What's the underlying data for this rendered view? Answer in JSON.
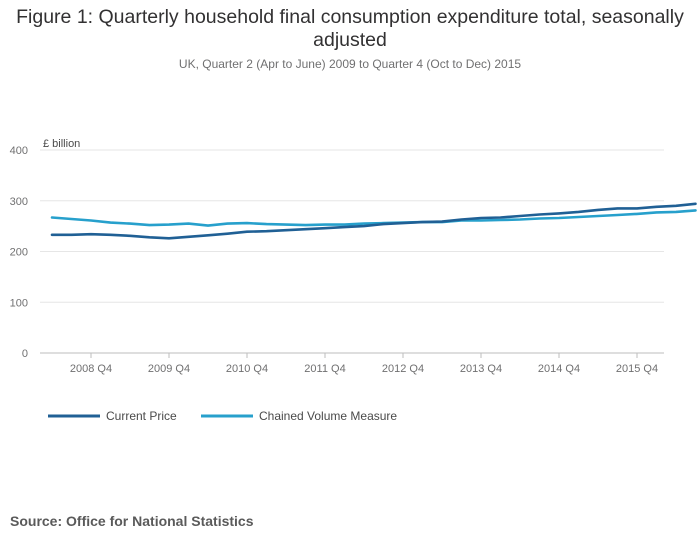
{
  "title": "Figure 1: Quarterly household final consumption expenditure total, seasonally adjusted",
  "subtitle": "UK, Quarter 2 (Apr to June) 2009 to Quarter 4 (Oct to Dec) 2015",
  "source": "Source: Office for National Statistics",
  "colors": {
    "current_price": "#206095",
    "chained_volume": "#27a0cc",
    "grid": "#e6e6e6",
    "tick_text": "#707071"
  },
  "chart_data": {
    "type": "line",
    "ylabel": "£ billion",
    "ylim": [
      0,
      400
    ],
    "yticks": [
      0,
      100,
      200,
      300,
      400
    ],
    "xtick_labels": [
      "2008 Q4",
      "2009 Q4",
      "2010 Q4",
      "2011 Q4",
      "2012 Q4",
      "2013 Q4",
      "2014 Q4",
      "2015 Q4"
    ],
    "grid": true,
    "legend": "bottom-left",
    "series": [
      {
        "name": "Current Price",
        "values": [
          233,
          233,
          234,
          233,
          231,
          228,
          226,
          229,
          232,
          235,
          239,
          240,
          242,
          244,
          246,
          248,
          250,
          254,
          256,
          258,
          259,
          263,
          266,
          267,
          270,
          273,
          275,
          278,
          282,
          285,
          285,
          288,
          290,
          294
        ]
      },
      {
        "name": "Chained Volume Measure",
        "values": [
          267,
          264,
          261,
          257,
          255,
          252,
          253,
          255,
          251,
          255,
          256,
          254,
          253,
          252,
          253,
          253,
          255,
          256,
          257,
          258,
          258,
          261,
          261,
          262,
          263,
          265,
          266,
          268,
          270,
          272,
          274,
          277,
          278,
          281
        ]
      }
    ]
  }
}
